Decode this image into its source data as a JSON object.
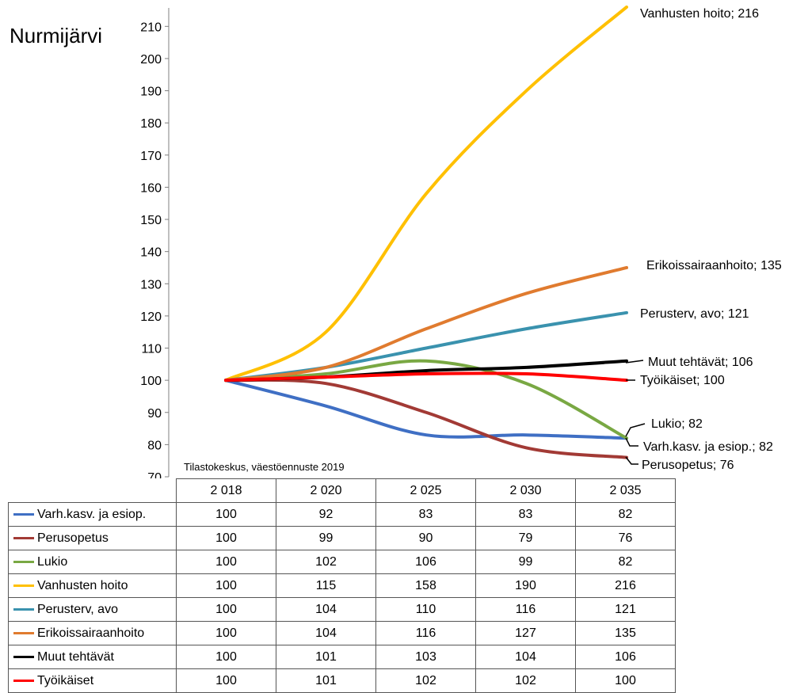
{
  "region_title": "Nurmijärvi",
  "source_note": "Tilastokeskus, väestöennuste 2019",
  "chart_data": {
    "type": "line",
    "x": [
      "2 018",
      "2 020",
      "2 025",
      "2 030",
      "2 035"
    ],
    "ylim": [
      70,
      215
    ],
    "yticks": [
      70,
      80,
      90,
      100,
      110,
      120,
      130,
      140,
      150,
      160,
      170,
      180,
      190,
      200,
      210
    ],
    "series": [
      {
        "name": "Varh.kasv. ja esiop.",
        "color": "#3f6fc4",
        "values": [
          100,
          92,
          83,
          83,
          82
        ],
        "end_label": "Varh.kasv. ja esiop.; 82"
      },
      {
        "name": "Perusopetus",
        "color": "#a23a35",
        "values": [
          100,
          99,
          90,
          79,
          76
        ],
        "end_label": "Perusopetus; 76"
      },
      {
        "name": "Lukio",
        "color": "#79a843",
        "values": [
          100,
          102,
          106,
          99,
          82
        ],
        "end_label": "Lukio; 82"
      },
      {
        "name": "Vanhusten hoito",
        "color": "#ffc000",
        "values": [
          100,
          115,
          158,
          190,
          216
        ],
        "end_label": "Vanhusten hoito; 216"
      },
      {
        "name": "Perusterv, avo",
        "color": "#3a92ae",
        "values": [
          100,
          104,
          110,
          116,
          121
        ],
        "end_label": "Perusterv, avo; 121"
      },
      {
        "name": "Erikoissairaanhoito",
        "color": "#e07b2f",
        "values": [
          100,
          104,
          116,
          127,
          135
        ],
        "end_label": "Erikoissairaanhoito; 135"
      },
      {
        "name": "Muut tehtävät",
        "color": "#000000",
        "values": [
          100,
          101,
          103,
          104,
          106
        ],
        "end_label": "Muut tehtävät; 106"
      },
      {
        "name": "Työikäiset",
        "color": "#ff0000",
        "values": [
          100,
          101,
          102,
          102,
          100
        ],
        "end_label": "Työikäiset; 100"
      }
    ],
    "grid": false,
    "legend": "table"
  }
}
